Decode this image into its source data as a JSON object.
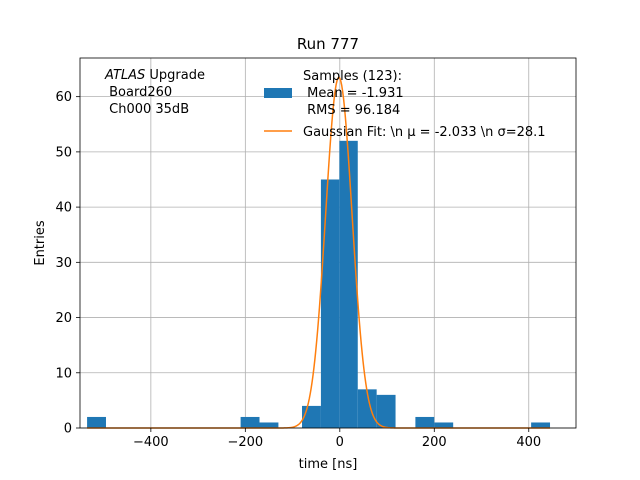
{
  "chart_data": {
    "type": "bar",
    "title": "Run 777",
    "xlabel": "time [ns]",
    "ylabel": "Entries",
    "xlim": [
      -550,
      500
    ],
    "ylim": [
      0,
      67
    ],
    "xticks": [
      -400,
      -200,
      0,
      200,
      400
    ],
    "xtick_labels": [
      "−400",
      "−200",
      "0",
      "200",
      "400"
    ],
    "yticks": [
      0,
      10,
      20,
      30,
      40,
      50,
      60
    ],
    "grid": true,
    "annotation": {
      "lines": [
        {
          "italic": "ATLAS",
          "rest": " Upgrade"
        },
        {
          "italic": "",
          "rest": " Board260"
        },
        {
          "italic": "",
          "rest": " Ch000 35dB"
        }
      ]
    },
    "legend": {
      "placement": "top-right",
      "histogram_label": [
        "Samples (123):",
        " Mean = -1.931",
        " RMS = 96.184"
      ],
      "fit_label": "Gaussian Fit: \\n μ = -2.033 \\n σ=28.1"
    },
    "histogram": {
      "name": "Samples (123)",
      "color": "#1f77b4",
      "bins": [
        {
          "x0": -535,
          "x1": -495,
          "count": 2
        },
        {
          "x0": -210,
          "x1": -170,
          "count": 2
        },
        {
          "x0": -170,
          "x1": -130,
          "count": 1
        },
        {
          "x0": -80,
          "x1": -40,
          "count": 4
        },
        {
          "x0": -40,
          "x1": -1,
          "count": 45
        },
        {
          "x0": -1,
          "x1": 38,
          "count": 52
        },
        {
          "x0": 38,
          "x1": 78,
          "count": 7
        },
        {
          "x0": 78,
          "x1": 118,
          "count": 6
        },
        {
          "x0": 160,
          "x1": 200,
          "count": 2
        },
        {
          "x0": 200,
          "x1": 240,
          "count": 1
        },
        {
          "x0": 405,
          "x1": 445,
          "count": 1
        }
      ]
    },
    "fit": {
      "name": "Gaussian Fit",
      "color": "#ff7f0e",
      "mu": -2.033,
      "sigma": 28.1,
      "amplitude": 63.5,
      "x_range": [
        -535,
        445
      ]
    }
  }
}
